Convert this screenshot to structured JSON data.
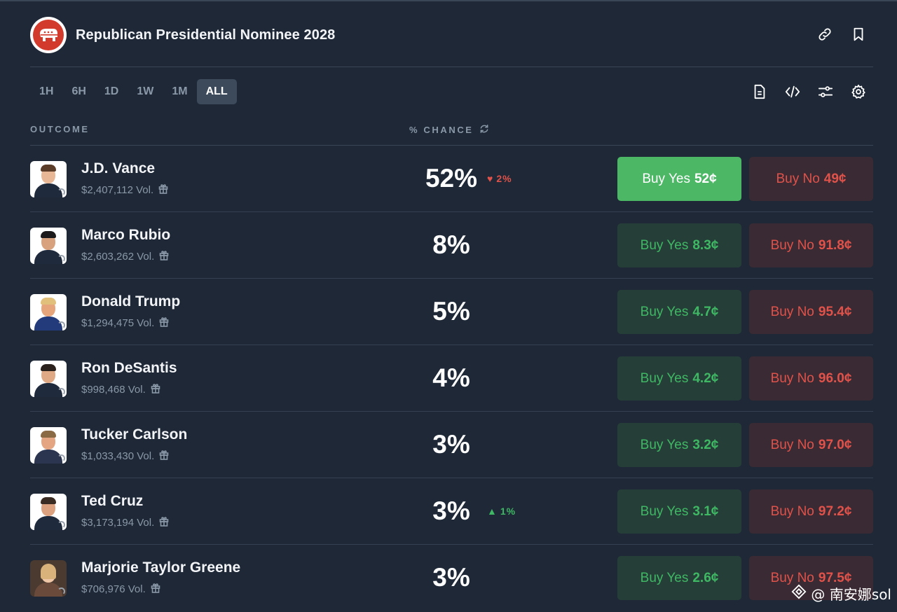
{
  "header": {
    "title": "Republican Presidential Nominee 2028"
  },
  "tabs": [
    {
      "label": "1H"
    },
    {
      "label": "6H"
    },
    {
      "label": "1D"
    },
    {
      "label": "1W"
    },
    {
      "label": "1M"
    },
    {
      "label": "ALL",
      "active": true
    }
  ],
  "table": {
    "col_outcome": "OUTCOME",
    "col_chance": "% CHANCE"
  },
  "outcomes": [
    {
      "name": "J.D. Vance",
      "volume": "$2,407,112 Vol.",
      "chance": "52%",
      "change": "2%",
      "change_dir": "down",
      "yes_label": "Buy Yes",
      "yes_price": "52¢",
      "no_label": "Buy No",
      "no_price": "49¢"
    },
    {
      "name": "Marco Rubio",
      "volume": "$2,603,262 Vol.",
      "chance": "8%",
      "change": "",
      "yes_label": "Buy Yes",
      "yes_price": "8.3¢",
      "no_label": "Buy No",
      "no_price": "91.8¢"
    },
    {
      "name": "Donald Trump",
      "volume": "$1,294,475 Vol.",
      "chance": "5%",
      "change": "",
      "yes_label": "Buy Yes",
      "yes_price": "4.7¢",
      "no_label": "Buy No",
      "no_price": "95.4¢"
    },
    {
      "name": "Ron DeSantis",
      "volume": "$998,468 Vol.",
      "chance": "4%",
      "change": "",
      "yes_label": "Buy Yes",
      "yes_price": "4.2¢",
      "no_label": "Buy No",
      "no_price": "96.0¢"
    },
    {
      "name": "Tucker Carlson",
      "volume": "$1,033,430 Vol.",
      "chance": "3%",
      "change": "",
      "yes_label": "Buy Yes",
      "yes_price": "3.2¢",
      "no_label": "Buy No",
      "no_price": "97.0¢"
    },
    {
      "name": "Ted Cruz",
      "volume": "$3,173,194 Vol.",
      "chance": "3%",
      "change": "1%",
      "change_dir": "up",
      "yes_label": "Buy Yes",
      "yes_price": "3.1¢",
      "no_label": "Buy No",
      "no_price": "97.2¢"
    },
    {
      "name": "Marjorie Taylor Greene",
      "volume": "$706,976 Vol.",
      "chance": "3%",
      "change": "",
      "yes_label": "Buy Yes",
      "yes_price": "2.6¢",
      "no_label": "Buy No",
      "no_price": "97.5¢"
    }
  ],
  "watermark": {
    "text": "@ 南安娜sol"
  },
  "colors": {
    "background": "#1e2836",
    "yes_green": "#3fb864",
    "no_red": "#e0524a",
    "active_tab": "#3d4a5c"
  },
  "icons": [
    "republican-elephant-logo",
    "link-icon",
    "bookmark-icon",
    "document-icon",
    "code-icon",
    "sliders-icon",
    "gear-icon",
    "refresh-icon",
    "gift-icon",
    "heart-down-icon",
    "triangle-up-icon"
  ]
}
